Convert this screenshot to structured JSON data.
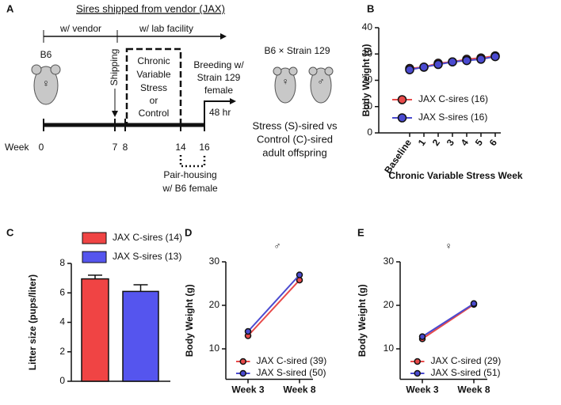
{
  "panel_a": {
    "label": "A",
    "title": "Sires shipped from vendor (JAX)",
    "vendor": "w/ vendor",
    "lab": "w/ lab facility",
    "strain": "B6",
    "female_symbol": "♀",
    "male_symbol": "♂",
    "shipping": "Shipping",
    "stress_box": [
      "Chronic",
      "Variable",
      "Stress",
      "or",
      "Control"
    ],
    "breeding": [
      "Breeding w/",
      "Strain 129",
      "female"
    ],
    "hours": "48 hr",
    "cross": "B6 × Strain 129",
    "offspring": [
      "Stress (S)-sired vs",
      "Control (C)-sired",
      "adult offspring"
    ],
    "week_label": "Week",
    "weeks": [
      "0",
      "7",
      "8",
      "14",
      "16"
    ],
    "pairing": [
      "Pair-housing",
      "w/ B6 female"
    ]
  },
  "chart_data": [
    {
      "type": "line",
      "panel_label": "B",
      "y_label": "Body Weight (g)",
      "x_label": "Chronic Variable Stress Week",
      "categories": [
        "Baseline",
        "1",
        "2",
        "3",
        "4",
        "5",
        "6"
      ],
      "series": [
        {
          "name": "JAX C-sires (16)",
          "color": "#e84a4a",
          "values": [
            24.5,
            25,
            26.5,
            27,
            28,
            28.5,
            29.3
          ]
        },
        {
          "name": "JAX S-sires (16)",
          "color": "#4a4ad0",
          "values": [
            24,
            25,
            26,
            27,
            27.5,
            28,
            29
          ]
        }
      ],
      "ylim": [
        0,
        40
      ],
      "yticks": [
        0,
        10,
        20,
        30,
        40
      ]
    },
    {
      "type": "bar",
      "panel_label": "C",
      "y_label": "Litter size (pups/liter)",
      "categories": [
        null
      ],
      "series": [
        {
          "name": "JAX C-sires (14)",
          "color": "#f04444",
          "values": [
            6.95
          ],
          "errors": [
            0.25
          ]
        },
        {
          "name": "JAX S-sires (13)",
          "color": "#5555ee",
          "values": [
            6.1
          ],
          "errors": [
            0.45
          ]
        }
      ],
      "ylim": [
        0,
        8
      ],
      "yticks": [
        0,
        2,
        4,
        6,
        8
      ]
    },
    {
      "type": "line",
      "panel_label": "D",
      "title": "♂",
      "y_label": "Body Weight (g)",
      "categories": [
        "Week 3",
        "Week 8"
      ],
      "series": [
        {
          "name": "JAX C-sired (39)",
          "color": "#e84a4a",
          "values": [
            13,
            25.8
          ]
        },
        {
          "name": "JAX S-sired (50)",
          "color": "#4a4ad0",
          "values": [
            14,
            27
          ]
        }
      ],
      "ylim": [
        3,
        30
      ],
      "yticks": [
        10,
        20,
        30
      ]
    },
    {
      "type": "line",
      "panel_label": "E",
      "title": "♀",
      "y_label": "Body Weight (g)",
      "categories": [
        "Week 3",
        "Week 8"
      ],
      "series": [
        {
          "name": "JAX C-sired (29)",
          "color": "#e84a4a",
          "values": [
            12.3,
            20.2
          ]
        },
        {
          "name": "JAX S-sired (51)",
          "color": "#4a4ad0",
          "values": [
            12.8,
            20.4
          ]
        }
      ],
      "ylim": [
        3,
        30
      ],
      "yticks": [
        10,
        20,
        30
      ]
    }
  ]
}
